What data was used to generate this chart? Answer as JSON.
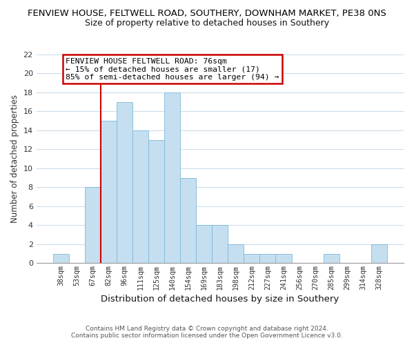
{
  "title": "FENVIEW HOUSE, FELTWELL ROAD, SOUTHERY, DOWNHAM MARKET, PE38 0NS",
  "subtitle": "Size of property relative to detached houses in Southery",
  "xlabel": "Distribution of detached houses by size in Southery",
  "ylabel": "Number of detached properties",
  "bin_labels": [
    "38sqm",
    "53sqm",
    "67sqm",
    "82sqm",
    "96sqm",
    "111sqm",
    "125sqm",
    "140sqm",
    "154sqm",
    "169sqm",
    "183sqm",
    "198sqm",
    "212sqm",
    "227sqm",
    "241sqm",
    "256sqm",
    "270sqm",
    "285sqm",
    "299sqm",
    "314sqm",
    "328sqm"
  ],
  "bar_heights": [
    1,
    0,
    8,
    15,
    17,
    14,
    13,
    18,
    9,
    4,
    4,
    2,
    1,
    1,
    1,
    0,
    0,
    1,
    0,
    0,
    2
  ],
  "bar_color": "#c5dff0",
  "bar_edge_color": "#7db8d8",
  "vline_color": "#cc0000",
  "vline_pos": 3.0,
  "ylim": [
    0,
    22
  ],
  "yticks": [
    0,
    2,
    4,
    6,
    8,
    10,
    12,
    14,
    16,
    18,
    20,
    22
  ],
  "annotation_title": "FENVIEW HOUSE FELTWELL ROAD: 76sqm",
  "annotation_line1": "← 15% of detached houses are smaller (17)",
  "annotation_line2": "85% of semi-detached houses are larger (94) →",
  "annotation_box_color": "#ffffff",
  "annotation_box_edge": "#cc0000",
  "footer1": "Contains HM Land Registry data © Crown copyright and database right 2024.",
  "footer2": "Contains public sector information licensed under the Open Government Licence v3.0.",
  "background_color": "#ffffff",
  "grid_color": "#c8d8e8"
}
